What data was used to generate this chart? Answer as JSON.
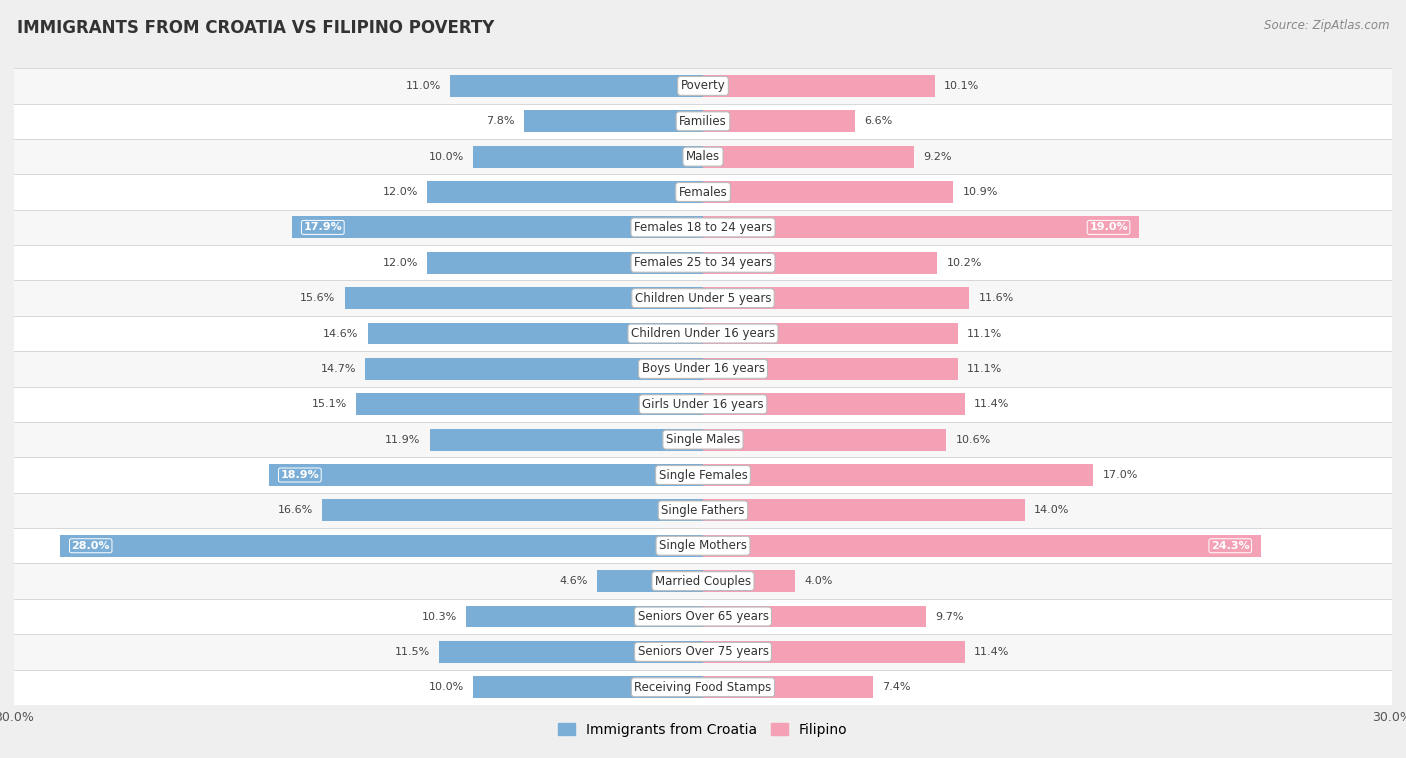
{
  "title": "IMMIGRANTS FROM CROATIA VS FILIPINO POVERTY",
  "source": "Source: ZipAtlas.com",
  "categories": [
    "Poverty",
    "Families",
    "Males",
    "Females",
    "Females 18 to 24 years",
    "Females 25 to 34 years",
    "Children Under 5 years",
    "Children Under 16 years",
    "Boys Under 16 years",
    "Girls Under 16 years",
    "Single Males",
    "Single Females",
    "Single Fathers",
    "Single Mothers",
    "Married Couples",
    "Seniors Over 65 years",
    "Seniors Over 75 years",
    "Receiving Food Stamps"
  ],
  "croatia_values": [
    11.0,
    7.8,
    10.0,
    12.0,
    17.9,
    12.0,
    15.6,
    14.6,
    14.7,
    15.1,
    11.9,
    18.9,
    16.6,
    28.0,
    4.6,
    10.3,
    11.5,
    10.0
  ],
  "filipino_values": [
    10.1,
    6.6,
    9.2,
    10.9,
    19.0,
    10.2,
    11.6,
    11.1,
    11.1,
    11.4,
    10.6,
    17.0,
    14.0,
    24.3,
    4.0,
    9.7,
    11.4,
    7.4
  ],
  "croatia_color": "#7aaed6",
  "filipino_color": "#f4a0b5",
  "croatia_label": "Immigrants from Croatia",
  "filipino_label": "Filipino",
  "axis_max": 30.0,
  "background_color": "#efefef",
  "row_bg_even": "#f7f7f7",
  "row_bg_odd": "#ffffff",
  "highlight_threshold": 17.5
}
